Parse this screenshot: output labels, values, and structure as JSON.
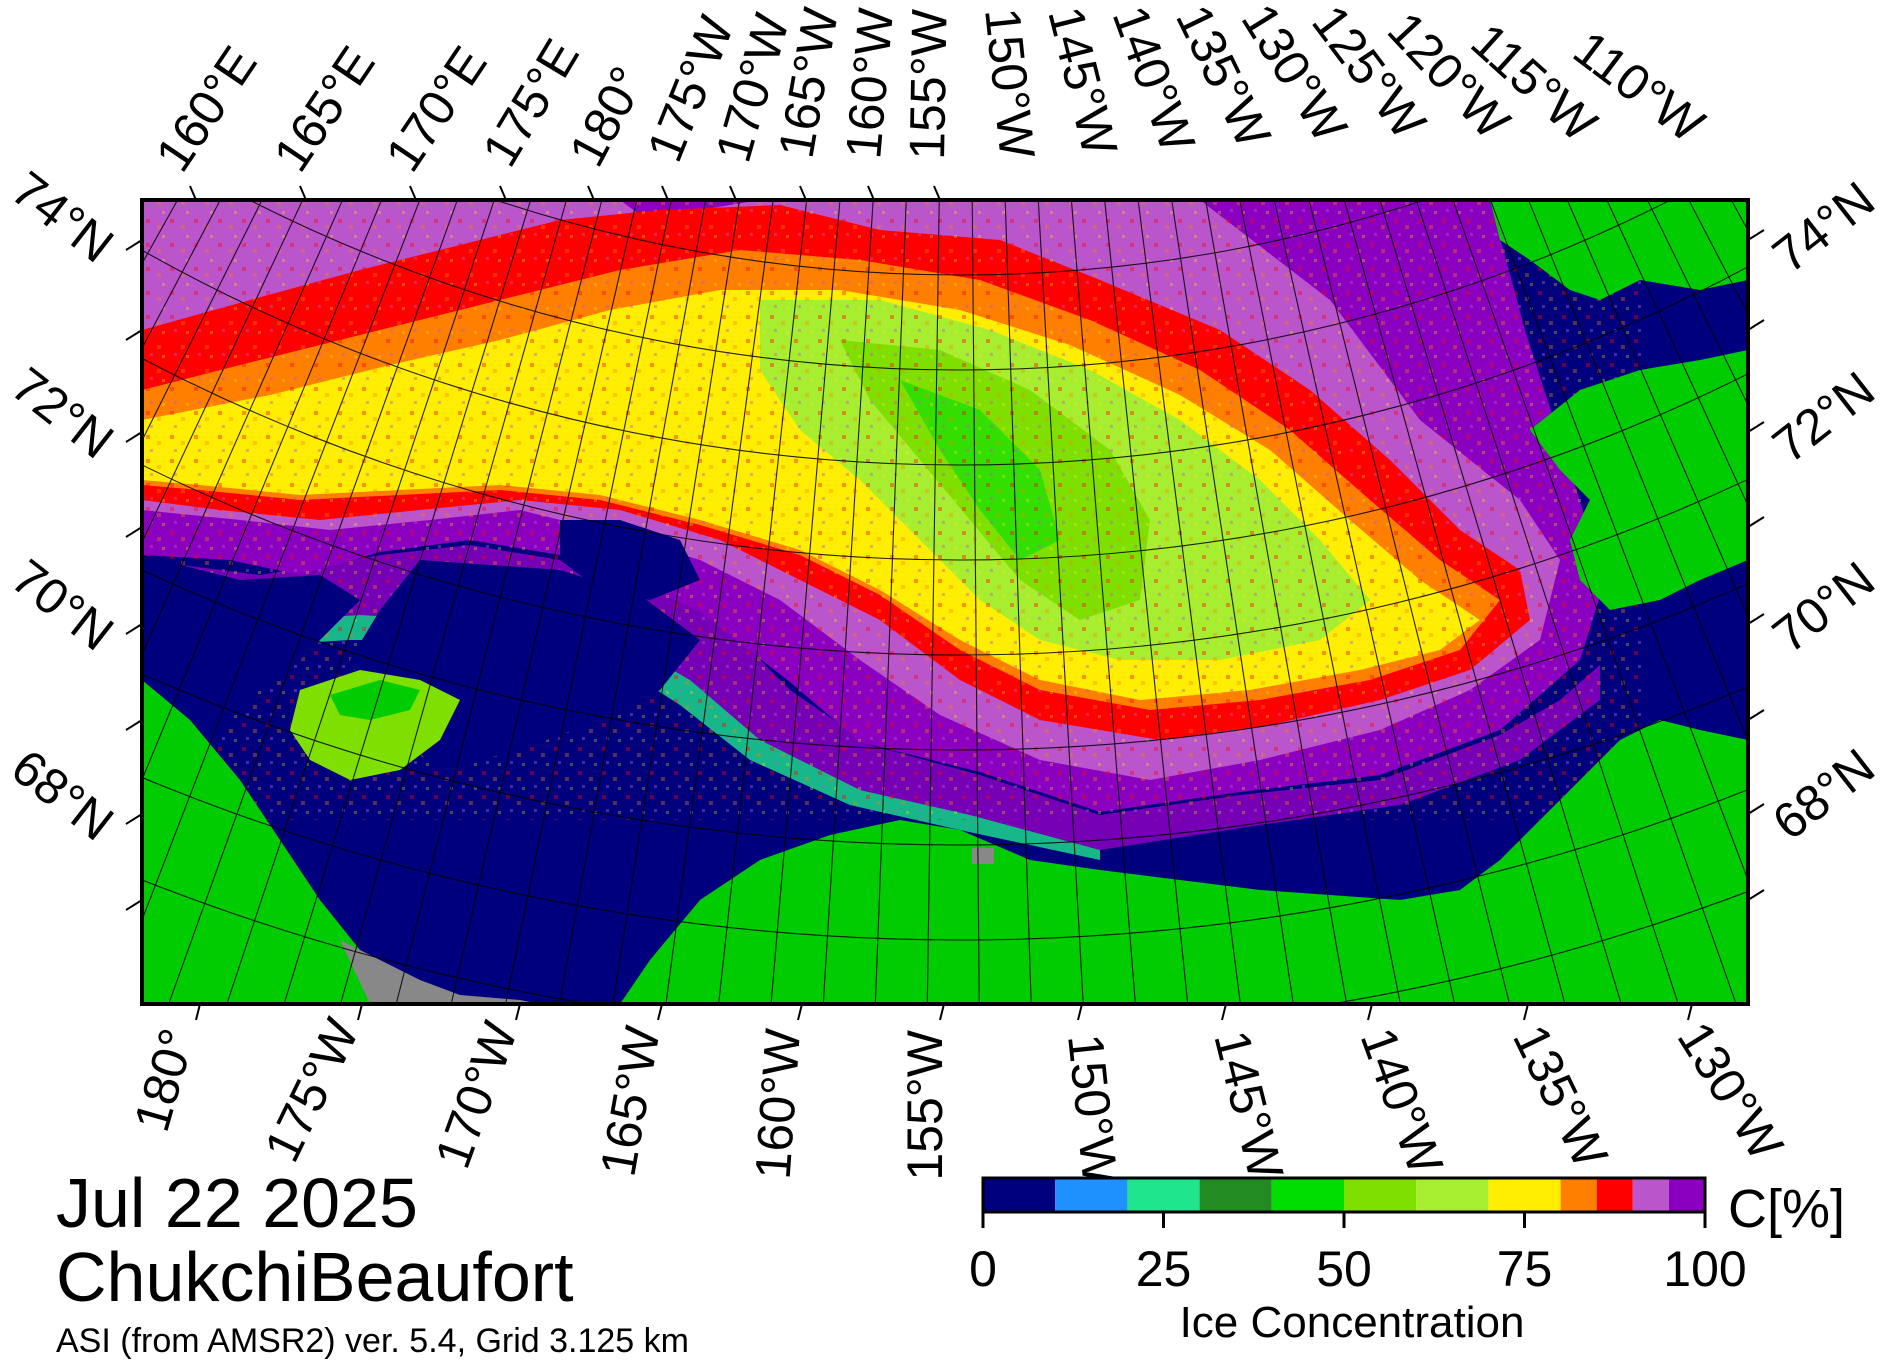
{
  "map": {
    "date": "Jul 22 2025",
    "region": "ChukchiBeaufort",
    "product": "ASI (from AMSR2) ver. 5.4,  Grid 3.125 km",
    "top_lon_labels": [
      "160°E",
      "165°E",
      "170°E",
      "175°E",
      "180°",
      "175°W",
      "170°W",
      "165°W",
      "160°W",
      "155°W",
      "150°W",
      "145°W",
      "140°W",
      "135°W",
      "130°W",
      "125°W",
      "120°W",
      "115°W",
      "110°W"
    ],
    "bottom_lon_labels": [
      "180°",
      "175°W",
      "170°W",
      "165°W",
      "160°W",
      "155°W",
      "150°W",
      "145°W",
      "140°W",
      "135°W",
      "130°W"
    ],
    "left_lat_labels": [
      "74°N",
      "72°N",
      "70°N",
      "68°N"
    ],
    "right_lat_labels": [
      "74°N",
      "72°N",
      "70°N",
      "68°N"
    ]
  },
  "colorbar": {
    "title": "Ice Concentration",
    "unit": "C[%]",
    "ticks": [
      "0",
      "25",
      "50",
      "75",
      "100"
    ],
    "tick_values": [
      0,
      25,
      50,
      75,
      100
    ],
    "range": [
      0,
      100
    ],
    "bins": [
      {
        "from": 0,
        "to": 10,
        "color": "#00007f"
      },
      {
        "from": 10,
        "to": 20,
        "color": "#1e90ff"
      },
      {
        "from": 20,
        "to": 30,
        "color": "#1ee58c"
      },
      {
        "from": 30,
        "to": 40,
        "color": "#228b22"
      },
      {
        "from": 40,
        "to": 50,
        "color": "#00dd00"
      },
      {
        "from": 50,
        "to": 60,
        "color": "#7fe000"
      },
      {
        "from": 60,
        "to": 70,
        "color": "#a8ee30"
      },
      {
        "from": 70,
        "to": 80,
        "color": "#ffee00"
      },
      {
        "from": 80,
        "to": 85,
        "color": "#ff7f00"
      },
      {
        "from": 85,
        "to": 90,
        "color": "#ff0000"
      },
      {
        "from": 90,
        "to": 95,
        "color": "#bb55cc"
      },
      {
        "from": 95,
        "to": 100,
        "color": "#8b00c0"
      }
    ]
  },
  "colors": {
    "land": "#00cc00",
    "open_water": "#00007f",
    "no_data": "#888888",
    "frame": "#000000"
  }
}
